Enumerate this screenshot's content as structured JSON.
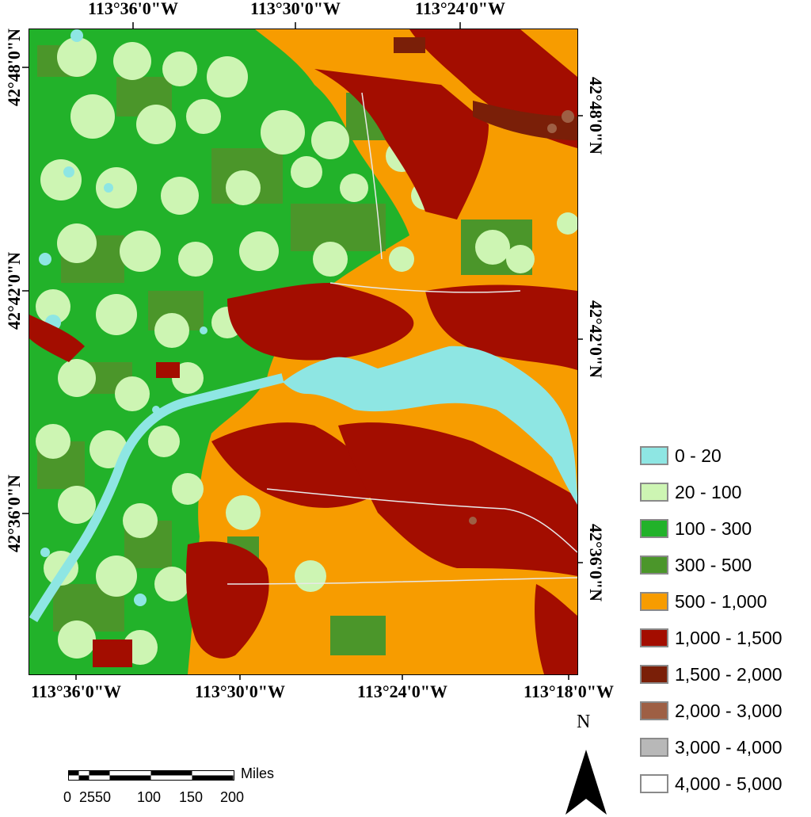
{
  "axes": {
    "top": [
      "113°36'0\"W",
      "113°30'0\"W",
      "113°24'0\"W"
    ],
    "bottom": [
      "113°36'0\"W",
      "113°30'0\"W",
      "113°24'0\"W",
      "113°18'0\"W"
    ],
    "left": [
      "42°48'0\"N",
      "42°42'0\"N",
      "42°36'0\"N"
    ],
    "right": [
      "42°48'0\"N",
      "42°42'0\"N",
      "42°36'0\"N"
    ]
  },
  "legend": [
    {
      "label": "0 - 20",
      "color": "#8ee6e3"
    },
    {
      "label": "20 - 100",
      "color": "#cdf5b3"
    },
    {
      "label": "100 - 300",
      "color": "#22b22a"
    },
    {
      "label": "300 - 500",
      "color": "#4b962a"
    },
    {
      "label": "500 - 1,000",
      "color": "#f79c00"
    },
    {
      "label": "1,000 - 1,500",
      "color": "#a30d00"
    },
    {
      "label": "1,500 - 2,000",
      "color": "#7a1f08"
    },
    {
      "label": "2,000 - 3,000",
      "color": "#9e5f44"
    },
    {
      "label": "3,000 - 4,000",
      "color": "#b8b8b8"
    },
    {
      "label": "4,000 - 5,000",
      "color": "#ffffff"
    }
  ],
  "scale_bar": {
    "unit": "Miles",
    "labels": [
      "0",
      "2550",
      "100",
      "150",
      "200"
    ]
  },
  "north_arrow": {
    "label": "N"
  }
}
